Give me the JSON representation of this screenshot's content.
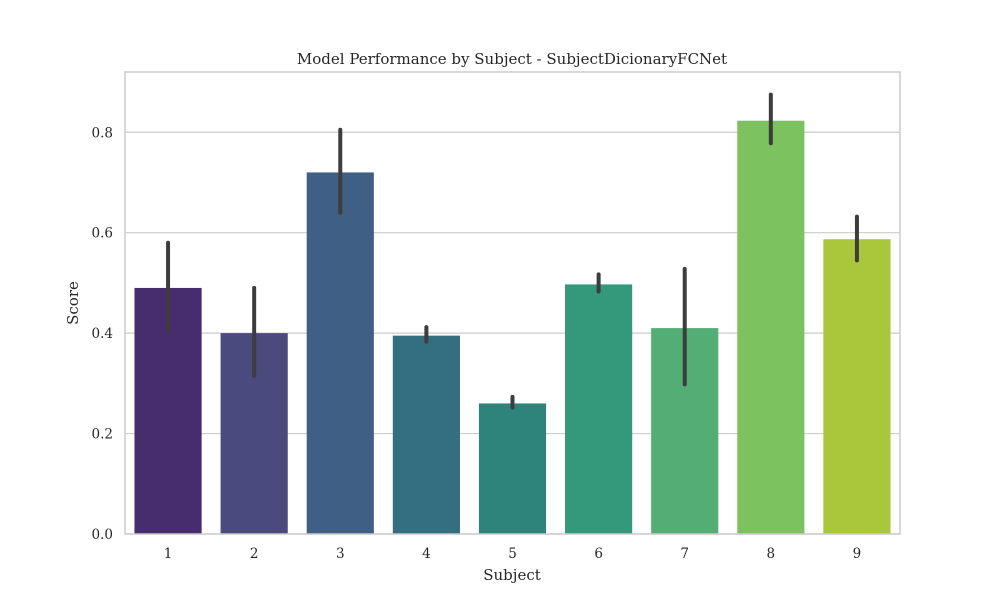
{
  "chart_data": {
    "type": "bar",
    "title": "Model Performance by Subject - SubjectDicionaryFCNet",
    "xlabel": "Subject",
    "ylabel": "Score",
    "categories": [
      "1",
      "2",
      "3",
      "4",
      "5",
      "6",
      "7",
      "8",
      "9"
    ],
    "values": [
      0.49,
      0.4,
      0.72,
      0.395,
      0.26,
      0.497,
      0.41,
      0.823,
      0.587
    ],
    "error_low": [
      0.405,
      0.315,
      0.64,
      0.383,
      0.252,
      0.483,
      0.298,
      0.778,
      0.545
    ],
    "error_high": [
      0.58,
      0.49,
      0.805,
      0.412,
      0.273,
      0.517,
      0.528,
      0.875,
      0.632
    ],
    "ylim": [
      0,
      0.92
    ],
    "yticks": [
      0.0,
      0.2,
      0.4,
      0.6,
      0.8
    ],
    "ytick_labels": [
      "0.0",
      "0.2",
      "0.4",
      "0.6",
      "0.8"
    ],
    "grid": "horizontal",
    "colors": [
      "#472d6e",
      "#4a4a7e",
      "#3f5f84",
      "#336f80",
      "#2e837b",
      "#33997a",
      "#52ae73",
      "#7cc25f",
      "#aac63a"
    ],
    "error_color": "#3d3d3d",
    "grid_color": "#cccccc",
    "frame_color": "#cccccc"
  }
}
